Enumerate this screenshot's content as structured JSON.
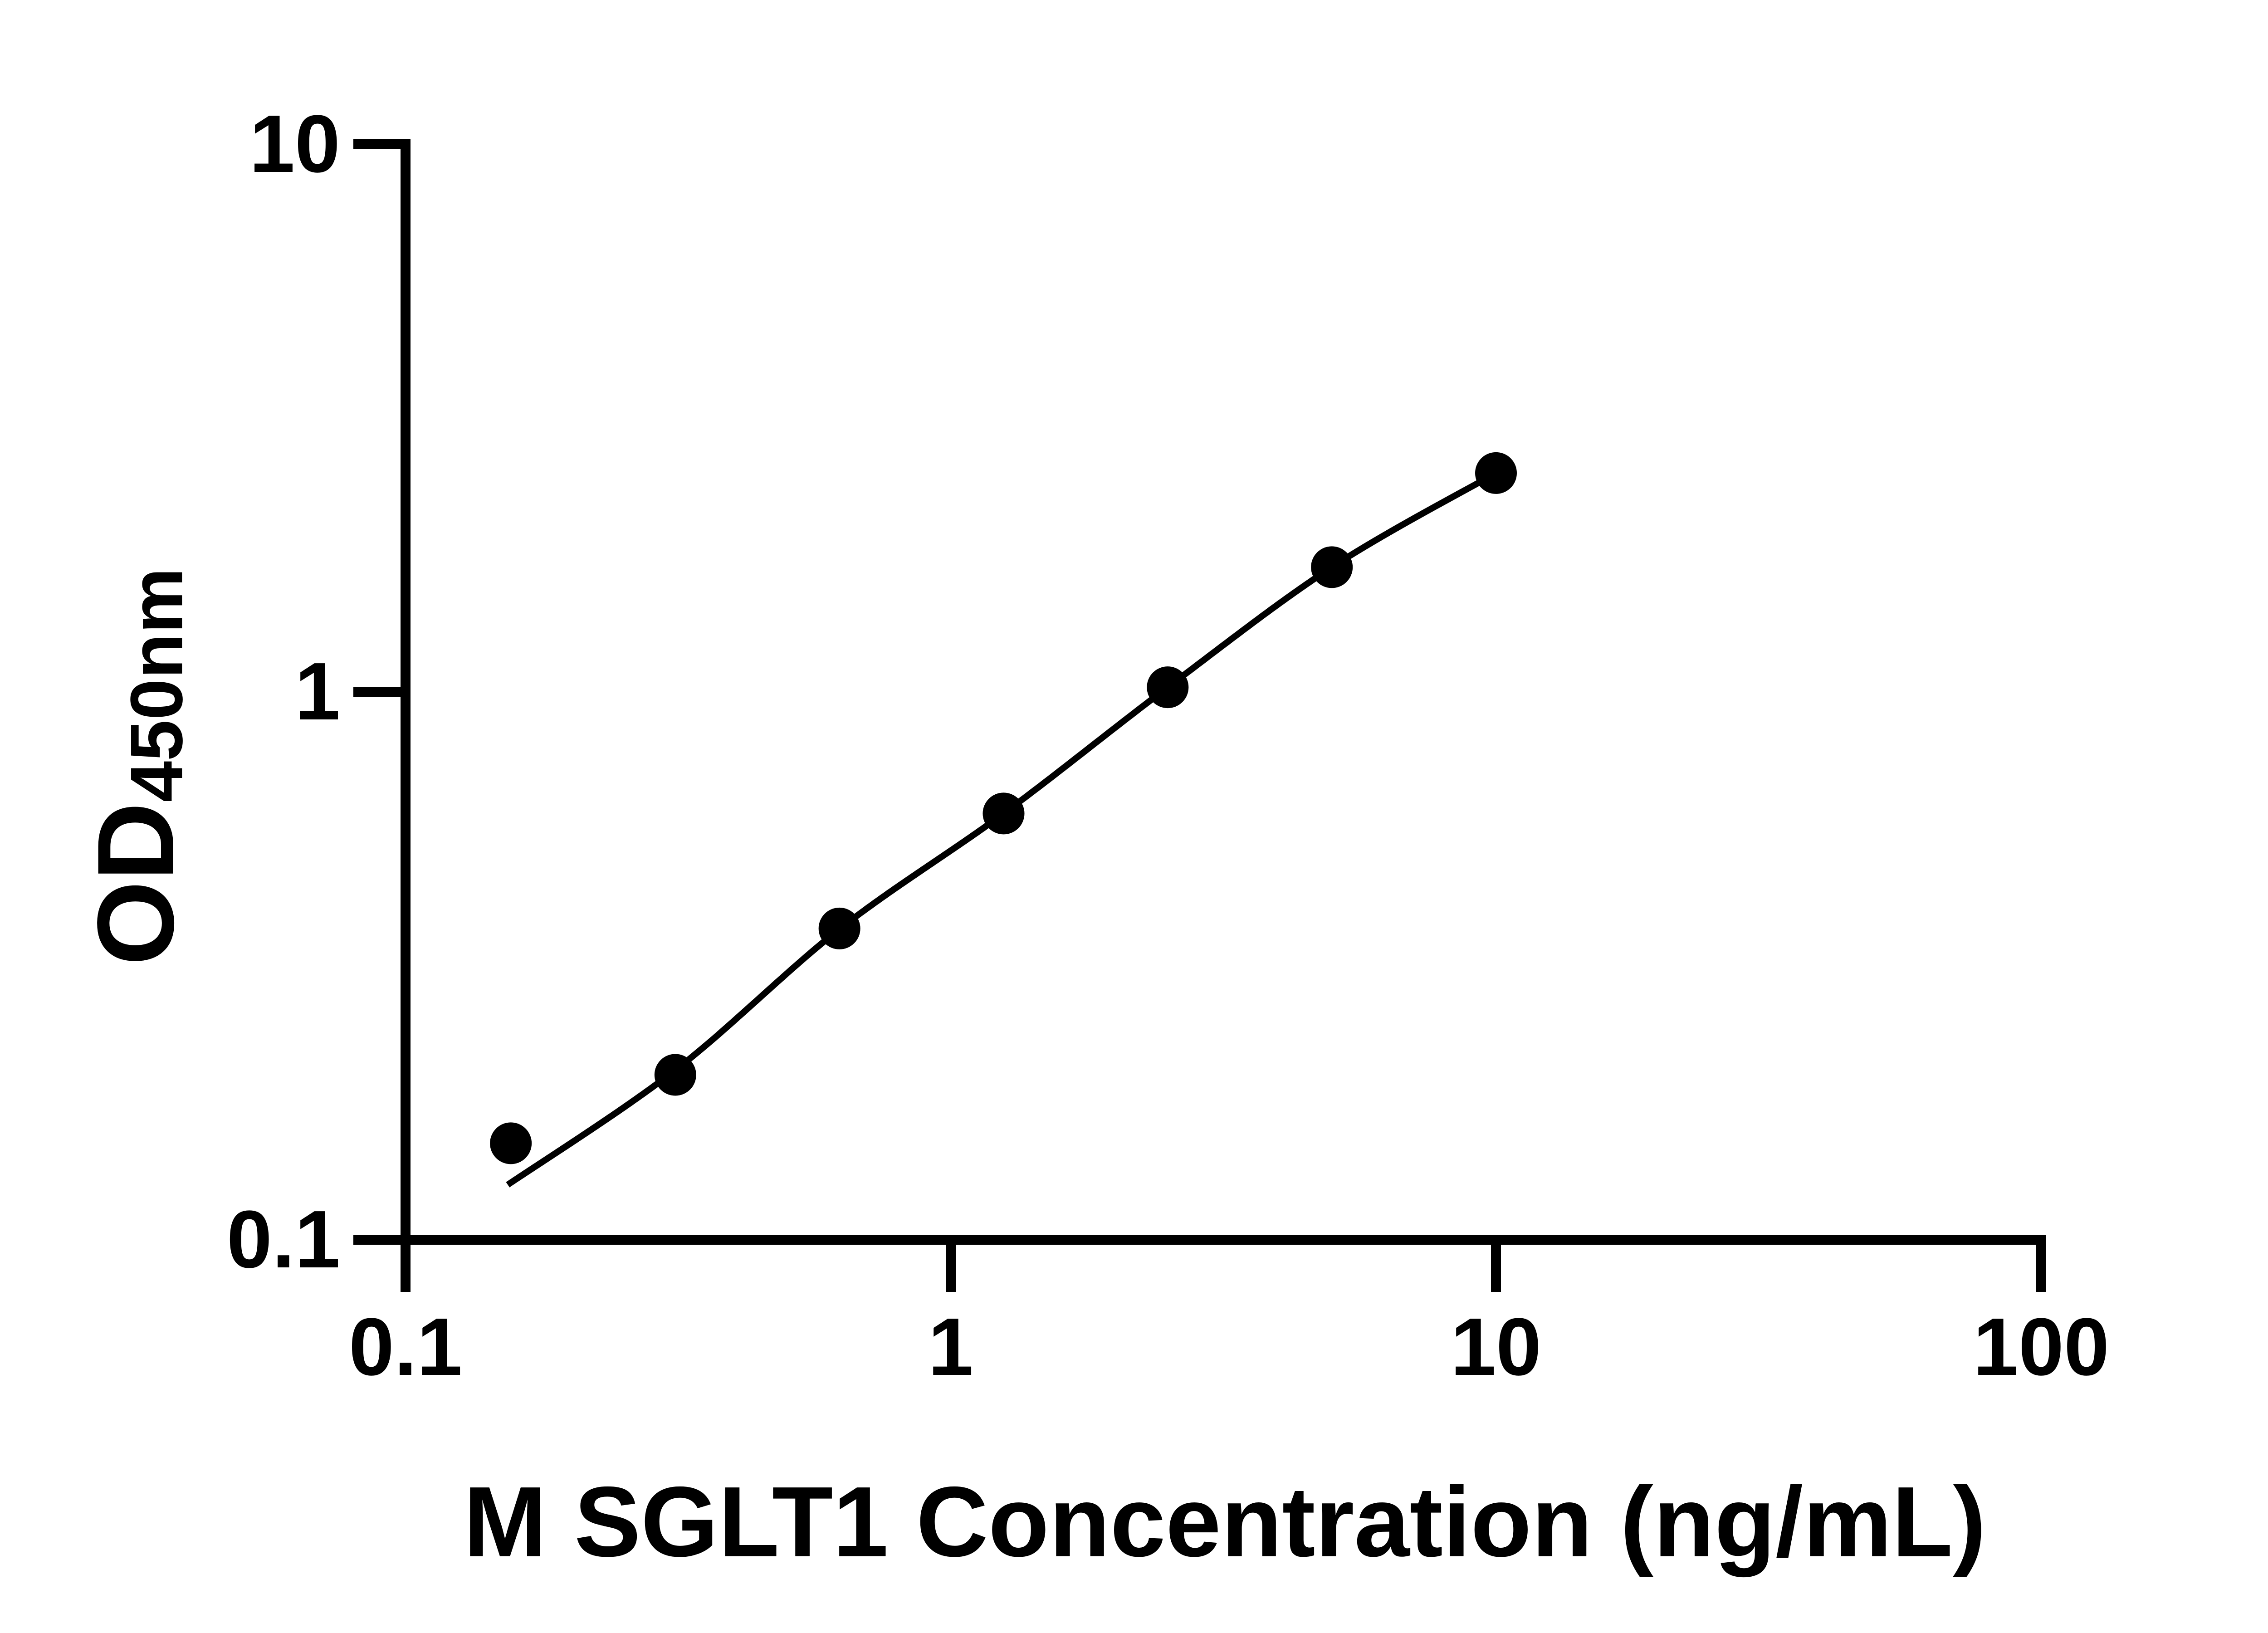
{
  "chart_data": {
    "type": "scatter",
    "title": "",
    "xlabel": "M SGLT1 Concentration (ng/mL)",
    "ylabel": "OD",
    "ylabel_subscript": "450nm",
    "x_scale": "log",
    "y_scale": "log",
    "xlim": [
      0.1,
      100
    ],
    "ylim": [
      0.1,
      10
    ],
    "grid": false,
    "legend_position": "none",
    "marker_color": "#000000",
    "line_color": "#000000",
    "background_color": "#ffffff",
    "x_ticks": {
      "values": [
        0.1,
        1,
        10,
        100
      ],
      "labels": [
        "0.1",
        "1",
        "10",
        "100"
      ]
    },
    "y_ticks": {
      "values": [
        0.1,
        1,
        10
      ],
      "labels": [
        "0.1",
        "1",
        "10"
      ]
    },
    "points": [
      {
        "x": 0.156,
        "y": 0.15
      },
      {
        "x": 0.3125,
        "y": 0.2
      },
      {
        "x": 0.625,
        "y": 0.37
      },
      {
        "x": 1.25,
        "y": 0.6
      },
      {
        "x": 2.5,
        "y": 1.02
      },
      {
        "x": 5,
        "y": 1.69
      },
      {
        "x": 10,
        "y": 2.51
      }
    ],
    "fit_curve": [
      {
        "x": 0.154,
        "y": 0.126
      },
      {
        "x": 0.3125,
        "y": 0.204
      },
      {
        "x": 0.625,
        "y": 0.369
      },
      {
        "x": 1.25,
        "y": 0.6
      },
      {
        "x": 2.5,
        "y": 1.02
      },
      {
        "x": 5,
        "y": 1.69
      },
      {
        "x": 10,
        "y": 2.51
      }
    ]
  }
}
